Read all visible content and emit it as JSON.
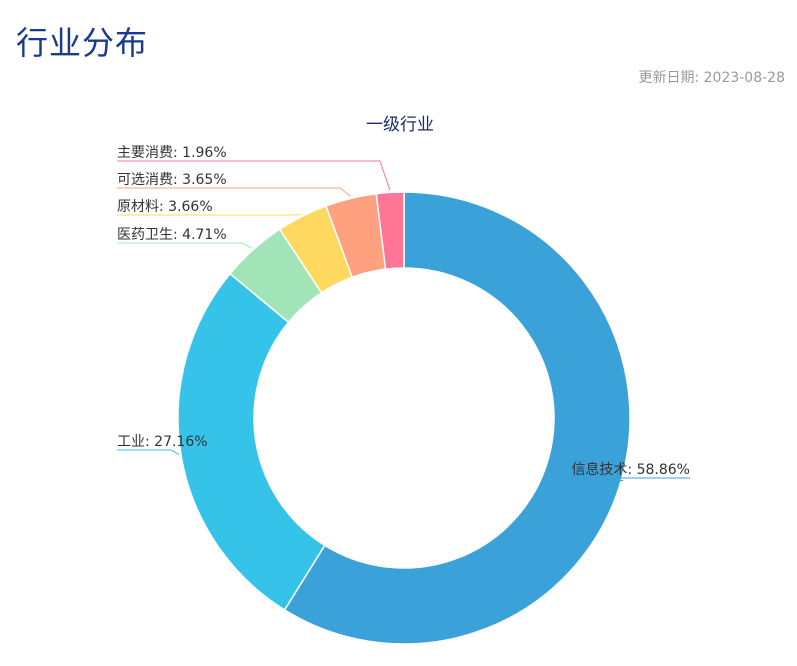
{
  "page": {
    "title": "行业分布",
    "update_label": "更新日期:",
    "update_date": "2023-08-28"
  },
  "chart_data": {
    "type": "pie",
    "title": "一级行业",
    "donut": true,
    "slices": [
      {
        "name": "信息技术",
        "value": 58.86,
        "color": "#3aa1d9"
      },
      {
        "name": "工业",
        "value": 27.16,
        "color": "#35c3e9"
      },
      {
        "name": "医药卫生",
        "value": 4.71,
        "color": "#a0e4b8"
      },
      {
        "name": "原材料",
        "value": 3.66,
        "color": "#ffd95f"
      },
      {
        "name": "可选消费",
        "value": 3.65,
        "color": "#ffa07f"
      },
      {
        "name": "主要消费",
        "value": 1.96,
        "color": "#ff7596"
      }
    ]
  }
}
